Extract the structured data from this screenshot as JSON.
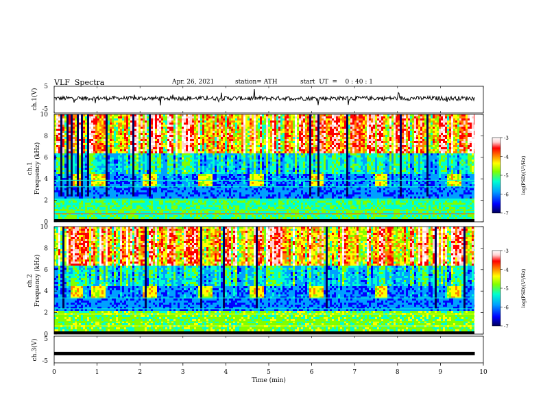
{
  "header": {
    "title": "VLF  Spectra",
    "date": "Apr. 26, 2021",
    "station": "station= ATH",
    "start_ut": "start  UT  =    0 : 40 : 1"
  },
  "chart_data": [
    {
      "type": "line",
      "panel": "ch1-waveform",
      "ylabel": "ch.1(V)",
      "ylim": [
        -5,
        5
      ],
      "y_ticks": [
        "5",
        "-5"
      ],
      "xlim": [
        0,
        10
      ],
      "description_values": {
        "baseline": 0.5,
        "noise_amplitude": 0.8,
        "end_x": 9.8
      }
    },
    {
      "type": "heatmap",
      "panel": "ch1-spectrogram",
      "ylabel": "ch.1\nFrequency  (kHz)",
      "ylabel_lines": [
        "ch.1",
        "Frequency  (kHz)"
      ],
      "ylim": [
        0,
        10
      ],
      "y_ticks": [
        "0",
        "2",
        "4",
        "6",
        "8",
        "10"
      ],
      "xlim": [
        0,
        9.8
      ],
      "colorbar": {
        "label": "log(PSD)(V²/Hz)",
        "range": [
          -7,
          -3
        ],
        "ticks": [
          "-3",
          "-4",
          "-5",
          "-6",
          "-7"
        ]
      },
      "burst_times_min": [
        0.5,
        1.0,
        2.2,
        3.5,
        4.7,
        6.1,
        7.6,
        9.3
      ]
    },
    {
      "type": "heatmap",
      "panel": "ch2-spectrogram",
      "ylabel": "ch.2\nFrequency  (kHz)",
      "ylabel_lines": [
        "ch.2",
        "Frequency  (kHz)"
      ],
      "ylim": [
        0,
        10
      ],
      "y_ticks": [
        "0",
        "2",
        "4",
        "6",
        "8",
        "10"
      ],
      "xlim": [
        0,
        9.8
      ],
      "colorbar": {
        "label": "log(PSD)(V²/Hz)",
        "range": [
          -7,
          -3
        ],
        "ticks": [
          "-3",
          "-4",
          "-5",
          "-6",
          "-7"
        ]
      },
      "burst_times_min": [
        0.5,
        1.0,
        2.2,
        3.5,
        4.7,
        6.1,
        7.6,
        9.3
      ]
    },
    {
      "type": "line",
      "panel": "ch3-waveform",
      "ylabel": "ch.3(V)",
      "ylim": [
        -5,
        5
      ],
      "y_ticks": [
        "5",
        "-5"
      ],
      "xlim": [
        0,
        10
      ],
      "description_values": {
        "constant": -1.5,
        "end_x": 9.8
      }
    }
  ],
  "x_axis": {
    "label": "Time  (min)",
    "ticks": [
      "0",
      "1",
      "2",
      "3",
      "4",
      "5",
      "6",
      "7",
      "8",
      "9",
      "10"
    ]
  },
  "colors": {
    "colormap": [
      "#00005a",
      "#0000ff",
      "#00a0ff",
      "#00ffd0",
      "#80ff00",
      "#ffff00",
      "#ff8000",
      "#ff0000",
      "#ffd0d0",
      "#ffffff"
    ]
  }
}
